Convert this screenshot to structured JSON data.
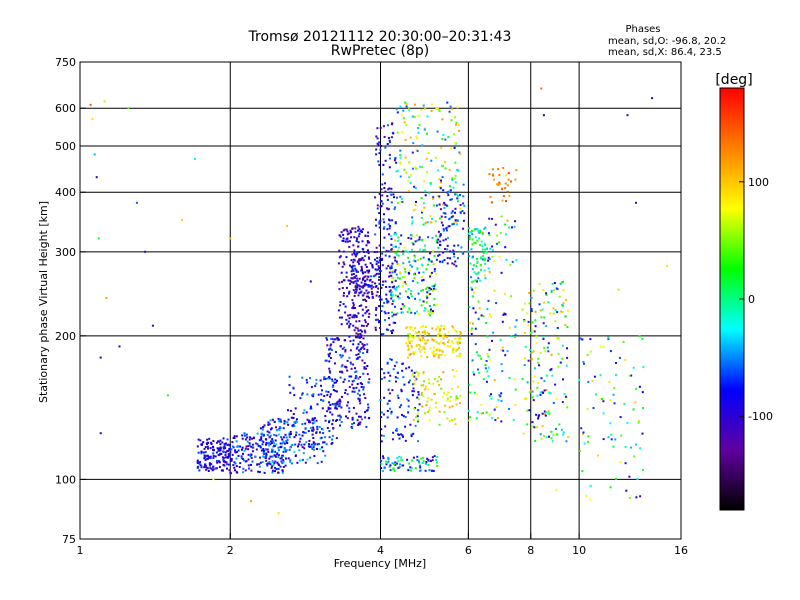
{
  "header": {
    "title_line1": "Tromsø 20121112 20:30:00–20:31:43",
    "title_line2": "RwPretec (8p)"
  },
  "stats": {
    "heading": "Phases",
    "line_o": "mean, sd,O: -96.8, 20.2",
    "line_x": "mean, sd,X:  86.4, 23.5"
  },
  "colorbar": {
    "label": "[deg]",
    "ticks": [
      {
        "value": 100,
        "label": "100"
      },
      {
        "value": 0,
        "label": "0"
      },
      {
        "value": -100,
        "label": "-100"
      }
    ],
    "range": [
      -180,
      180
    ],
    "stops": [
      "#ff0000",
      "#ff8000",
      "#ffff00",
      "#00ff00",
      "#00ffff",
      "#0000ff",
      "#6000a0",
      "#000000"
    ]
  },
  "chart_data": {
    "type": "scatter",
    "xlabel": "Frequency [MHz]",
    "ylabel": "Stationary phase Virtual Height [km]",
    "xscale": "log",
    "yscale": "log",
    "xlim": [
      1,
      16
    ],
    "ylim": [
      75,
      750
    ],
    "xticks": [
      {
        "value": 1,
        "label": "1"
      },
      {
        "value": 2,
        "label": "2"
      },
      {
        "value": 4,
        "label": "4"
      },
      {
        "value": 6,
        "label": "6"
      },
      {
        "value": 8,
        "label": "8"
      },
      {
        "value": 10,
        "label": "10"
      },
      {
        "value": 16,
        "label": "16"
      }
    ],
    "yticks": [
      {
        "value": 75,
        "label": "75"
      },
      {
        "value": 100,
        "label": "100"
      },
      {
        "value": 200,
        "label": "200"
      },
      {
        "value": 300,
        "label": "300"
      },
      {
        "value": 400,
        "label": "400"
      },
      {
        "value": 500,
        "label": "500"
      },
      {
        "value": 600,
        "label": "600"
      },
      {
        "value": 750,
        "label": "750"
      }
    ],
    "grid_x": [
      2,
      4,
      6,
      8,
      10
    ],
    "grid_y": [
      100,
      200,
      300,
      400,
      500,
      600
    ],
    "points": [
      [
        1.05,
        610,
        150
      ],
      [
        1.06,
        570,
        90
      ],
      [
        1.07,
        480,
        -40
      ],
      [
        1.08,
        430,
        -90
      ],
      [
        1.09,
        320,
        20
      ],
      [
        1.1,
        180,
        -90
      ],
      [
        1.1,
        125,
        -110
      ],
      [
        1.12,
        620,
        60
      ],
      [
        1.13,
        240,
        120
      ],
      [
        1.2,
        190,
        -100
      ],
      [
        1.25,
        600,
        40
      ],
      [
        1.3,
        380,
        -60
      ],
      [
        1.35,
        300,
        -90
      ],
      [
        1.4,
        210,
        -100
      ],
      [
        1.5,
        150,
        30
      ],
      [
        1.6,
        350,
        100
      ],
      [
        1.7,
        470,
        -20
      ],
      [
        1.85,
        100,
        80
      ],
      [
        2.0,
        320,
        110
      ],
      [
        2.2,
        90,
        120
      ],
      [
        2.5,
        85,
        90
      ],
      [
        2.6,
        340,
        100
      ],
      [
        2.9,
        260,
        -80
      ],
      [
        12.5,
        580,
        -100
      ],
      [
        13.0,
        380,
        -120
      ],
      [
        14.0,
        630,
        -100
      ],
      [
        15.0,
        280,
        90
      ],
      [
        12.0,
        250,
        60
      ],
      [
        8.4,
        660,
        140
      ],
      [
        8.5,
        580,
        -150
      ],
      [
        9.0,
        95,
        80
      ]
    ],
    "clusters": [
      {
        "f": [
          1.72,
          2.0
        ],
        "h": [
          104,
          122
        ],
        "phase": [
          -120,
          -60
        ],
        "n": 160
      },
      {
        "f": [
          2.0,
          2.6
        ],
        "h": [
          103,
          125
        ],
        "phase": [
          -120,
          -40
        ],
        "n": 200
      },
      {
        "f": [
          2.3,
          3.1
        ],
        "h": [
          108,
          135
        ],
        "phase": [
          -110,
          -30
        ],
        "n": 160
      },
      {
        "f": [
          2.6,
          3.3
        ],
        "h": [
          118,
          165
        ],
        "phase": [
          -110,
          -40
        ],
        "n": 110
      },
      {
        "f": [
          3.1,
          3.8
        ],
        "h": [
          128,
          200
        ],
        "phase": [
          -130,
          -50
        ],
        "n": 220
      },
      {
        "f": [
          3.3,
          3.8
        ],
        "h": [
          200,
          340
        ],
        "phase": [
          -140,
          -70
        ],
        "n": 200
      },
      {
        "f": [
          3.5,
          4.0
        ],
        "h": [
          240,
          300
        ],
        "phase": [
          -140,
          -60
        ],
        "n": 120
      },
      {
        "f": [
          3.9,
          4.3
        ],
        "h": [
          200,
          560
        ],
        "phase": [
          -130,
          -50
        ],
        "n": 180
      },
      {
        "f": [
          4.0,
          5.2
        ],
        "h": [
          104,
          112
        ],
        "phase": [
          -120,
          40
        ],
        "n": 80
      },
      {
        "f": [
          4.0,
          4.8
        ],
        "h": [
          120,
          180
        ],
        "phase": [
          -110,
          -40
        ],
        "n": 100
      },
      {
        "f": [
          4.2,
          5.2
        ],
        "h": [
          220,
          330
        ],
        "phase": [
          -120,
          80
        ],
        "n": 200
      },
      {
        "f": [
          4.5,
          5.8
        ],
        "h": [
          180,
          210
        ],
        "phase": [
          60,
          120
        ],
        "n": 160
      },
      {
        "f": [
          4.3,
          5.8
        ],
        "h": [
          340,
          620
        ],
        "phase": [
          -80,
          120
        ],
        "n": 180
      },
      {
        "f": [
          4.6,
          5.8
        ],
        "h": [
          130,
          170
        ],
        "phase": [
          40,
          120
        ],
        "n": 80
      },
      {
        "f": [
          5.2,
          5.9
        ],
        "h": [
          280,
          420
        ],
        "phase": [
          -120,
          -40
        ],
        "n": 90
      },
      {
        "f": [
          6.0,
          7.5
        ],
        "h": [
          130,
          360
        ],
        "phase": [
          -120,
          120
        ],
        "n": 160
      },
      {
        "f": [
          6.0,
          6.6
        ],
        "h": [
          260,
          340
        ],
        "phase": [
          -60,
          40
        ],
        "n": 60
      },
      {
        "f": [
          6.5,
          7.5
        ],
        "h": [
          380,
          450
        ],
        "phase": [
          90,
          160
        ],
        "n": 30
      },
      {
        "f": [
          7.7,
          9.5
        ],
        "h": [
          120,
          260
        ],
        "phase": [
          -120,
          120
        ],
        "n": 180
      },
      {
        "f": [
          10.0,
          13.5
        ],
        "h": [
          90,
          200
        ],
        "phase": [
          -120,
          100
        ],
        "n": 90
      }
    ]
  }
}
